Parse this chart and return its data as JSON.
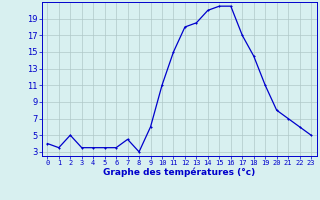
{
  "hours": [
    0,
    1,
    2,
    3,
    4,
    5,
    6,
    7,
    8,
    9,
    10,
    11,
    12,
    13,
    14,
    15,
    16,
    17,
    18,
    19,
    20,
    21,
    22,
    23
  ],
  "temps": [
    4,
    3.5,
    5,
    3.5,
    3.5,
    3.5,
    3.5,
    4.5,
    3,
    6,
    11,
    15,
    18,
    18.5,
    20,
    20.5,
    20.5,
    17,
    14.5,
    11,
    8,
    7,
    6,
    5
  ],
  "xlabel": "Graphe des températures (°c)",
  "yticks": [
    3,
    5,
    7,
    9,
    11,
    13,
    15,
    17,
    19
  ],
  "ylim": [
    2.5,
    21.0
  ],
  "xlim": [
    -0.5,
    23.5
  ],
  "bg_color": "#d8f0f0",
  "line_color": "#0000cc",
  "grid_color": "#b0c8c8",
  "xlabel_color": "#0000cc",
  "tick_color": "#0000cc",
  "xtick_fontsize": 5.0,
  "ytick_fontsize": 6.0,
  "xlabel_fontsize": 6.5,
  "xlabel_bold": true,
  "marker_size": 2.0,
  "linewidth": 0.9
}
